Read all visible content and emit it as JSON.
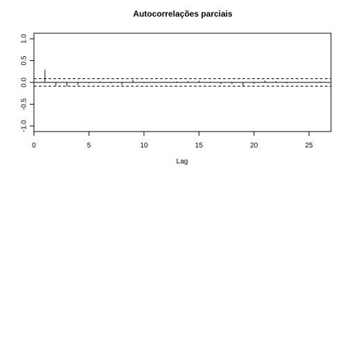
{
  "chart_data": {
    "type": "bar",
    "title": "Autocorrelações parciais",
    "xlabel": "Lag",
    "ylabel": "",
    "xlim": [
      0,
      27
    ],
    "ylim": [
      -1.0,
      1.0
    ],
    "x_ticks": [
      0,
      5,
      10,
      15,
      20,
      25
    ],
    "x_tick_labels": [
      "0",
      "5",
      "10",
      "15",
      "20",
      "25"
    ],
    "y_ticks": [
      -1.0,
      -0.5,
      0.0,
      0.5,
      1.0
    ],
    "y_tick_labels": [
      "-1.0",
      "-0.5",
      "0.0",
      "0.5",
      "1.0"
    ],
    "lags": [
      1,
      2,
      3,
      4,
      5,
      6,
      7,
      8,
      9,
      10,
      11,
      12,
      13,
      14,
      15,
      16,
      17,
      18,
      19,
      20,
      21,
      22,
      23,
      24,
      25,
      26
    ],
    "pacf": [
      0.29,
      -0.07,
      -0.09,
      -0.06,
      -0.02,
      0.02,
      -0.02,
      -0.06,
      0.06,
      -0.02,
      -0.01,
      0.01,
      0.02,
      0.03,
      0.04,
      0.02,
      -0.04,
      -0.04,
      -0.08,
      -0.03,
      0.04,
      0.03,
      -0.02,
      0.01,
      -0.01,
      0.02
    ],
    "confidence_bounds": [
      0.085,
      -0.085
    ],
    "zero_line": 0.0
  }
}
